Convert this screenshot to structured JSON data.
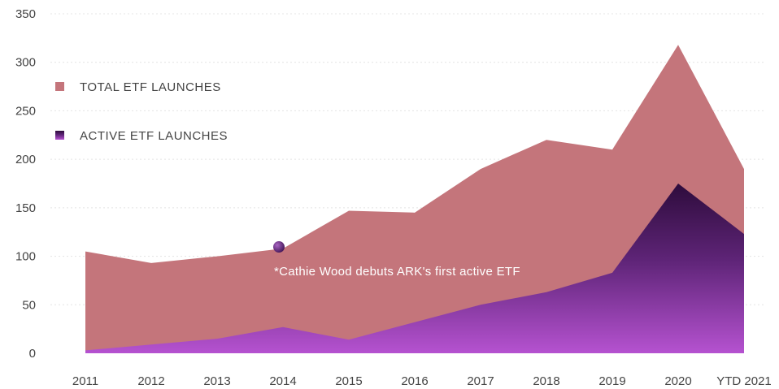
{
  "chart_data": {
    "type": "area",
    "categories": [
      "2011",
      "2012",
      "2013",
      "2014",
      "2015",
      "2016",
      "2017",
      "2018",
      "2019",
      "2020",
      "YTD 2021"
    ],
    "series": [
      {
        "name": "TOTAL ETF LAUNCHES",
        "color": "#c4757b",
        "values": [
          105,
          93,
          100,
          108,
          147,
          145,
          190,
          220,
          210,
          318,
          190
        ]
      },
      {
        "name": "ACTIVE ETF LAUNCHES",
        "color": "#6a2a86",
        "values": [
          3,
          9,
          15,
          27,
          14,
          32,
          50,
          63,
          83,
          175,
          123
        ]
      }
    ],
    "ylim": [
      0,
      350
    ],
    "yticks": [
      0,
      50,
      100,
      150,
      200,
      250,
      300,
      350
    ],
    "grid": true,
    "legend_position": "top-left",
    "annotation": {
      "text": "*Cathie Wood debuts ARK's first active ETF",
      "category": "2014",
      "value": 108,
      "marker_color": "#5b1f6e"
    }
  }
}
